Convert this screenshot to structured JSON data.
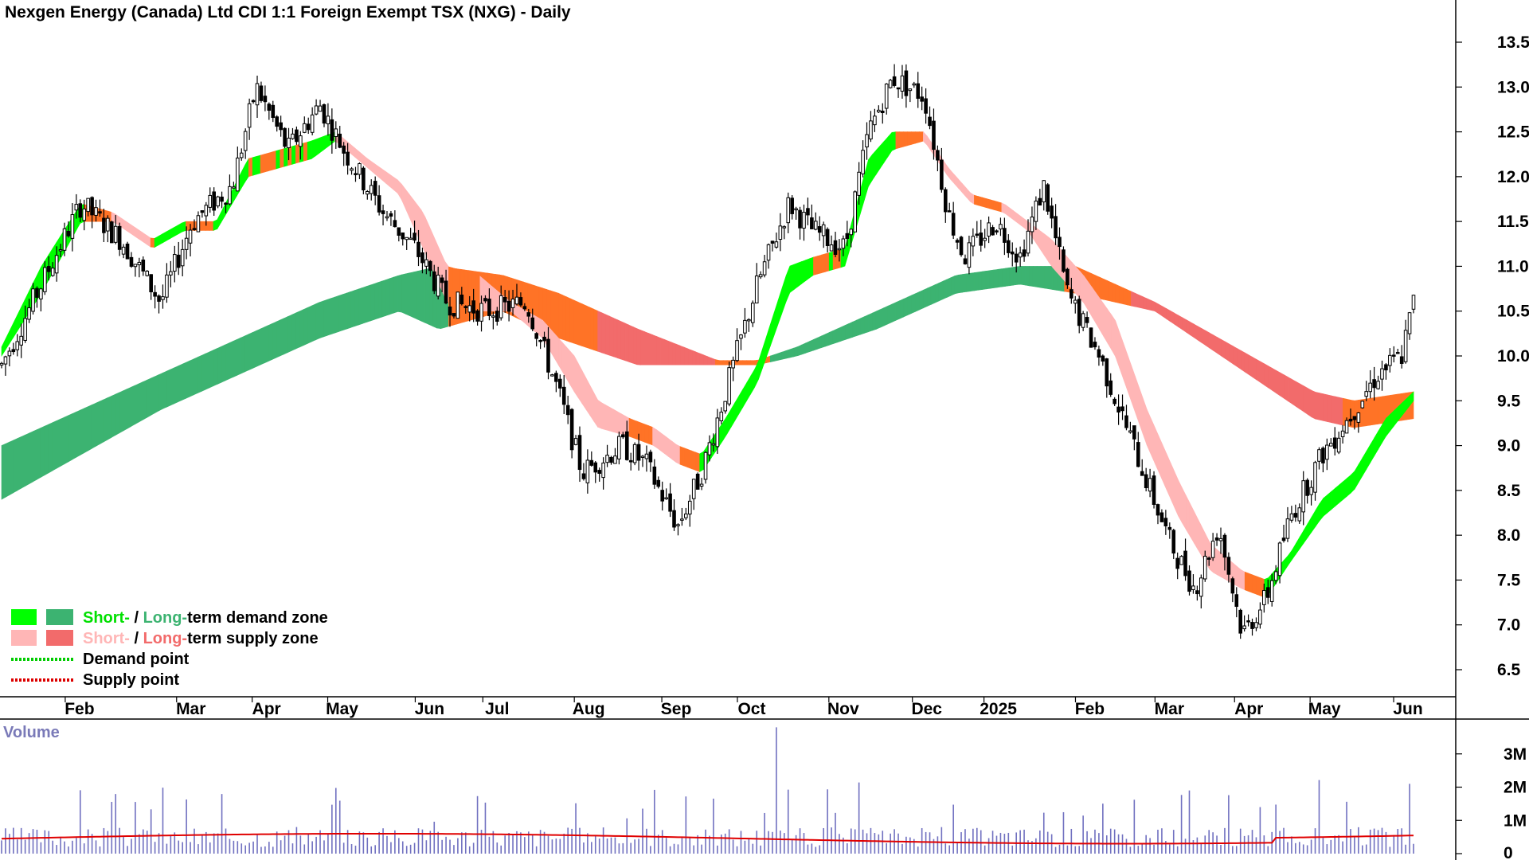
{
  "chart_data": {
    "type": "candlestick",
    "title": "Nexgen Energy (Canada) Ltd CDI 1:1 Foreign Exempt TSX (NXG) - Daily",
    "y_ticks": [
      "13.5",
      "13.0",
      "12.5",
      "12.0",
      "11.5",
      "11.0",
      "10.5",
      "10.0",
      "9.5",
      "9.0",
      "8.5",
      "8.0",
      "7.5",
      "7.0",
      "6.5"
    ],
    "ylim": [
      6.1,
      13.9
    ],
    "x_ticks": [
      "Feb",
      "Mar",
      "Apr",
      "May",
      "Jun",
      "Jul",
      "Aug",
      "Sep",
      "Oct",
      "Nov",
      "Dec",
      "2025",
      "Feb",
      "Mar",
      "Apr",
      "May",
      "Jun"
    ],
    "x_tick_index": [
      0.8,
      2.2,
      3.15,
      4.1,
      5.2,
      6.05,
      7.2,
      8.3,
      9.25,
      10.4,
      11.45,
      12.35,
      13.5,
      14.5,
      15.5,
      16.45,
      17.5
    ],
    "price_anchors": [
      [
        0,
        9.9
      ],
      [
        0.5,
        10.8
      ],
      [
        1,
        11.7
      ],
      [
        1.5,
        11.3
      ],
      [
        2,
        10.6
      ],
      [
        2.4,
        11.5
      ],
      [
        2.9,
        11.9
      ],
      [
        3.2,
        13.0
      ],
      [
        3.6,
        12.3
      ],
      [
        4.0,
        12.8
      ],
      [
        4.3,
        12.3
      ],
      [
        4.8,
        11.6
      ],
      [
        5.2,
        11.2
      ],
      [
        5.6,
        10.6
      ],
      [
        6.1,
        10.5
      ],
      [
        6.6,
        10.6
      ],
      [
        7.0,
        9.6
      ],
      [
        7.3,
        8.7
      ],
      [
        7.8,
        9.0
      ],
      [
        8.1,
        8.8
      ],
      [
        8.5,
        8.1
      ],
      [
        8.8,
        8.7
      ],
      [
        9.1,
        9.6
      ],
      [
        9.5,
        10.8
      ],
      [
        9.9,
        11.7
      ],
      [
        10.2,
        11.4
      ],
      [
        10.6,
        11.2
      ],
      [
        10.9,
        12.5
      ],
      [
        11.2,
        13.1
      ],
      [
        11.6,
        12.9
      ],
      [
        11.9,
        11.6
      ],
      [
        12.1,
        11.1
      ],
      [
        12.5,
        11.5
      ],
      [
        12.8,
        11.1
      ],
      [
        13.1,
        11.9
      ],
      [
        13.4,
        10.7
      ],
      [
        13.8,
        10.0
      ],
      [
        14.1,
        9.3
      ],
      [
        14.4,
        8.6
      ],
      [
        14.7,
        7.9
      ],
      [
        15.0,
        7.4
      ],
      [
        15.3,
        8.1
      ],
      [
        15.6,
        6.9
      ],
      [
        15.9,
        7.3
      ],
      [
        16.2,
        8.2
      ],
      [
        16.6,
        8.9
      ],
      [
        17.0,
        9.4
      ],
      [
        17.3,
        9.8
      ],
      [
        17.6,
        10.0
      ],
      [
        17.75,
        10.6
      ]
    ],
    "short_term_zone": [
      [
        0,
        10.0,
        10.1
      ],
      [
        0.5,
        10.7,
        11.0
      ],
      [
        1,
        11.5,
        11.7
      ],
      [
        1.4,
        11.5,
        11.6
      ],
      [
        1.9,
        11.2,
        11.3
      ],
      [
        2.3,
        11.4,
        11.5
      ],
      [
        2.7,
        11.4,
        11.5
      ],
      [
        3.1,
        12.0,
        12.2
      ],
      [
        3.5,
        12.1,
        12.3
      ],
      [
        3.9,
        12.2,
        12.4
      ],
      [
        4.2,
        12.4,
        12.5
      ],
      [
        4.6,
        12.1,
        12.2
      ],
      [
        5.0,
        11.8,
        11.95
      ],
      [
        5.3,
        11.2,
        11.6
      ],
      [
        5.6,
        10.6,
        11.0
      ],
      [
        6.0,
        10.5,
        10.9
      ],
      [
        6.4,
        10.5,
        10.6
      ],
      [
        6.8,
        10.2,
        10.4
      ],
      [
        7.2,
        9.6,
        10.0
      ],
      [
        7.5,
        9.2,
        9.5
      ],
      [
        7.9,
        9.1,
        9.3
      ],
      [
        8.2,
        9.0,
        9.2
      ],
      [
        8.5,
        8.8,
        9.0
      ],
      [
        8.8,
        8.7,
        8.9
      ],
      [
        9.1,
        9.1,
        9.3
      ],
      [
        9.5,
        9.7,
        9.9
      ],
      [
        9.9,
        10.7,
        11.0
      ],
      [
        10.2,
        10.9,
        11.1
      ],
      [
        10.6,
        11.0,
        11.2
      ],
      [
        10.9,
        11.9,
        12.2
      ],
      [
        11.2,
        12.3,
        12.5
      ],
      [
        11.6,
        12.4,
        12.5
      ],
      [
        11.9,
        12.0,
        12.1
      ],
      [
        12.2,
        11.7,
        11.8
      ],
      [
        12.6,
        11.6,
        11.7
      ],
      [
        12.9,
        11.4,
        11.5
      ],
      [
        13.2,
        11.0,
        11.3
      ],
      [
        13.6,
        10.6,
        10.9
      ],
      [
        14.0,
        10.0,
        10.4
      ],
      [
        14.4,
        9.0,
        9.4
      ],
      [
        14.8,
        8.2,
        8.6
      ],
      [
        15.2,
        7.6,
        7.9
      ],
      [
        15.6,
        7.4,
        7.6
      ],
      [
        15.9,
        7.3,
        7.5
      ],
      [
        16.2,
        7.7,
        7.8
      ],
      [
        16.6,
        8.2,
        8.4
      ],
      [
        17.0,
        8.5,
        8.7
      ],
      [
        17.4,
        9.1,
        9.3
      ],
      [
        17.75,
        9.5,
        9.6
      ]
    ],
    "long_term_zone": [
      [
        0,
        8.4,
        9.0
      ],
      [
        1,
        8.9,
        9.4
      ],
      [
        2,
        9.4,
        9.8
      ],
      [
        3,
        9.8,
        10.2
      ],
      [
        4,
        10.2,
        10.6
      ],
      [
        5,
        10.5,
        10.9
      ],
      [
        5.5,
        10.3,
        11.0
      ],
      [
        6.3,
        10.5,
        10.9
      ],
      [
        7.0,
        10.2,
        10.7
      ],
      [
        8.0,
        9.9,
        10.3
      ],
      [
        9.0,
        9.9,
        9.95
      ],
      [
        9.5,
        9.9,
        9.95
      ],
      [
        10.0,
        10.0,
        10.1
      ],
      [
        11.0,
        10.3,
        10.5
      ],
      [
        12.0,
        10.7,
        10.9
      ],
      [
        12.8,
        10.8,
        11.0
      ],
      [
        13.5,
        10.7,
        11.0
      ],
      [
        14.5,
        10.5,
        10.6
      ],
      [
        15.5,
        9.9,
        10.1
      ],
      [
        16.5,
        9.3,
        9.6
      ],
      [
        17.0,
        9.2,
        9.5
      ],
      [
        17.75,
        9.3,
        9.6
      ]
    ],
    "volume": {
      "label": "Volume",
      "y_ticks": [
        "3M",
        "2M",
        "1M",
        "0"
      ],
      "ylim": [
        0,
        4000000
      ],
      "average_line_color": "#e00000",
      "bar_color": "#7070c0"
    },
    "legend": [
      {
        "swatches": [
          "#00ff00",
          "#3cb371"
        ],
        "short": "Short-",
        "sep": " / ",
        "long": "Long-",
        "rest": "term demand zone",
        "short_color": "#00e000",
        "long_color": "#3cb371"
      },
      {
        "swatches": [
          "#ffb6b6",
          "#f26b6b"
        ],
        "short": "Short-",
        "sep": " / ",
        "long": "Long-",
        "rest": "term supply zone",
        "short_color": "#ffb6b6",
        "long_color": "#f26b6b"
      },
      {
        "line": "#00cc00",
        "text": "Demand point"
      },
      {
        "line": "#dd0000",
        "text": "Supply point"
      }
    ],
    "colors": {
      "short_demand": "#00ff00",
      "long_demand": "#3cb371",
      "short_supply": "#ffb6b6",
      "long_supply": "#f26b6b",
      "transition": "#ff7326",
      "candle": "#000000"
    }
  }
}
